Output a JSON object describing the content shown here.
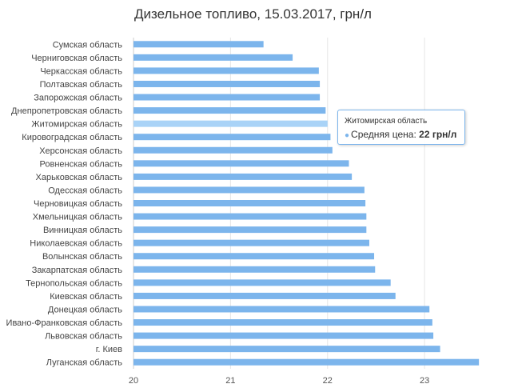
{
  "chart_data": {
    "type": "bar",
    "orientation": "horizontal",
    "title": "Дизельное топливо, 15.03.2017, грн/л",
    "categories": [
      "Сумская область",
      "Черниговская область",
      "Черкасская область",
      "Полтавская область",
      "Запорожская область",
      "Днепропетровская область",
      "Житомирская область",
      "Кировоградская область",
      "Херсонская область",
      "Ровненская область",
      "Харьковская область",
      "Одесская область",
      "Черновицкая область",
      "Хмельницкая область",
      "Винницкая область",
      "Николаевская область",
      "Волынская область",
      "Закарпатская область",
      "Тернопольская область",
      "Киевская область",
      "Донецкая область",
      "Ивано-Франковская область",
      "Львовская область",
      "г. Киев",
      "Луганская область"
    ],
    "values": [
      21.34,
      21.64,
      21.91,
      21.92,
      21.92,
      21.98,
      22.0,
      22.03,
      22.05,
      22.22,
      22.25,
      22.38,
      22.39,
      22.4,
      22.4,
      22.43,
      22.48,
      22.49,
      22.65,
      22.7,
      23.05,
      23.08,
      23.09,
      23.16,
      23.56
    ],
    "xlim": [
      20,
      23.6
    ],
    "ticks": [
      "20",
      "21",
      "22",
      "23"
    ],
    "tick_values": [
      20,
      21,
      22,
      23
    ],
    "grid": true,
    "highlight_index": 6,
    "colors": {
      "bar": "#7cb5ec",
      "bar_highlight": "#a9d3f7",
      "grid": "#e6e6e6"
    }
  },
  "tooltip": {
    "header": "Житомирская область",
    "series_label": "Средняя цена: ",
    "value_text": "22 грн/л"
  }
}
